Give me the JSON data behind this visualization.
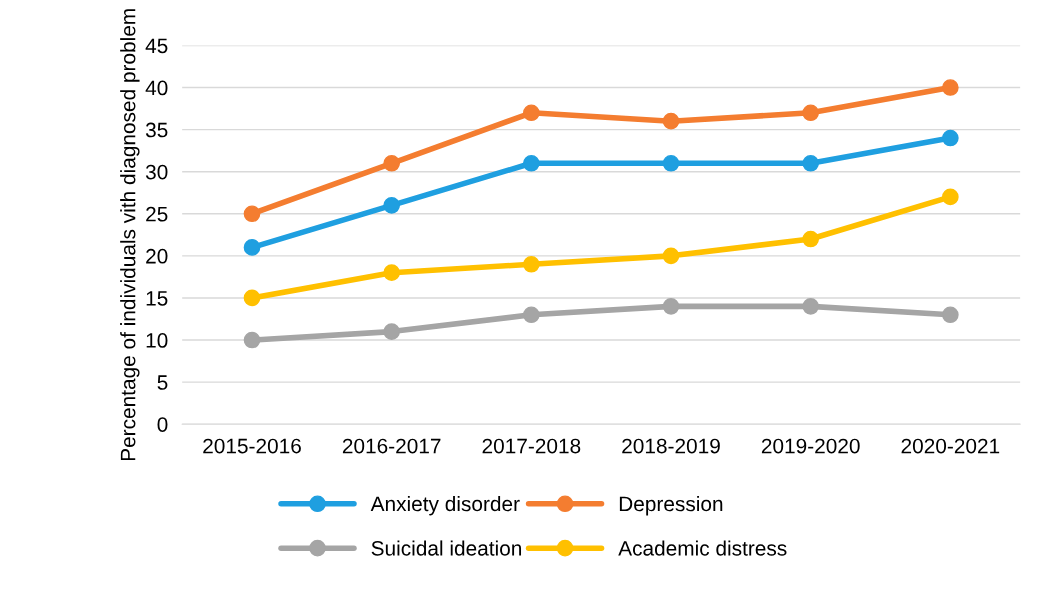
{
  "chart_data": {
    "type": "line",
    "ylabel": "Percentage of individuals vith diagnosed problem",
    "categories": [
      "2015-2016",
      "2016-2017",
      "2017-2018",
      "2018-2019",
      "2019-2020",
      "2020-2021"
    ],
    "series": [
      {
        "name": "Anxiety disorder",
        "color": "#1f9fe0",
        "values": [
          21,
          26,
          31,
          31,
          31,
          34
        ]
      },
      {
        "name": "Depression",
        "color": "#f47d30",
        "values": [
          25,
          31,
          37,
          36,
          37,
          40
        ]
      },
      {
        "name": "Suicidal ideation",
        "color": "#a5a5a5",
        "values": [
          10,
          11,
          13,
          14,
          14,
          13
        ]
      },
      {
        "name": "Academic distress",
        "color": "#ffc000",
        "values": [
          15,
          18,
          19,
          20,
          22,
          27
        ]
      }
    ],
    "ylim": [
      0,
      45
    ],
    "yticks": [
      0,
      5,
      10,
      15,
      20,
      25,
      30,
      35,
      40,
      45
    ],
    "grid": "y",
    "legend": "bottom",
    "marker": "circle",
    "line_style": "solid"
  }
}
